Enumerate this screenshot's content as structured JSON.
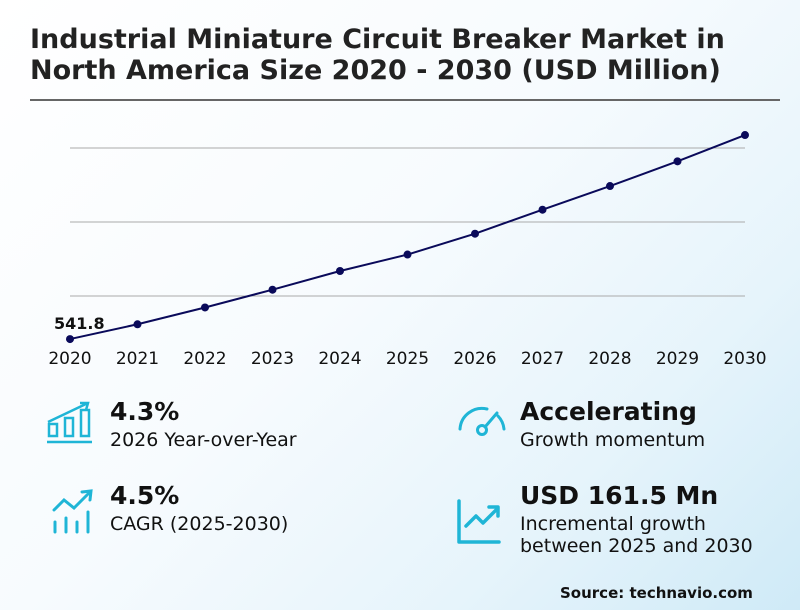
{
  "title": "Industrial Miniature Circuit Breaker Market in North America Size 2020 - 2030 (USD Million)",
  "chart_data": {
    "type": "line",
    "title": "Industrial Miniature Circuit Breaker Market in North America Size 2020 - 2030 (USD Million)",
    "categories": [
      "2020",
      "2021",
      "2022",
      "2023",
      "2024",
      "2025",
      "2026",
      "2027",
      "2028",
      "2029",
      "2030"
    ],
    "values": [
      541.8,
      561.8,
      584.5,
      608.5,
      633.8,
      656.0,
      684.2,
      716.6,
      748.6,
      782.0,
      817.5
    ],
    "data_labels": [
      {
        "category": "2020",
        "text": "541.8"
      }
    ],
    "ylim": [
      500,
      850
    ],
    "gridlines_y": [
      600,
      700,
      800
    ],
    "grid": true,
    "y_tick_labels_shown": false,
    "line_color": "#0a0a5a"
  },
  "kpis": [
    {
      "value": "4.3%",
      "label": "2026 Year-over-Year",
      "icon": "bar-chart-growth-icon"
    },
    {
      "value": "Accelerating",
      "label": "Growth momentum",
      "icon": "speedometer-icon"
    },
    {
      "value": "4.5%",
      "label": "CAGR (2025-2030)",
      "icon": "trend-bars-icon"
    },
    {
      "value": "USD 161.5 Mn",
      "label_line1": "Incremental growth",
      "label_line2": "between 2025 and 2030",
      "icon": "line-chart-up-icon"
    }
  ],
  "accent_color": "#1fb5d6",
  "source": "Source: technavio.com"
}
